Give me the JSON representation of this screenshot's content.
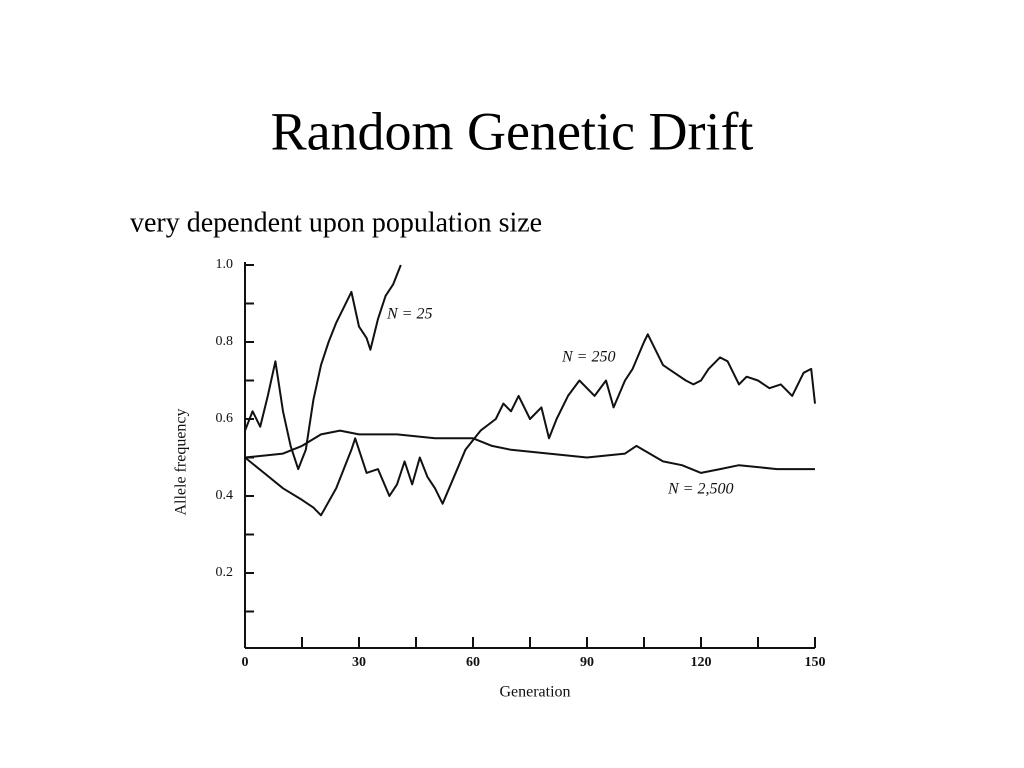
{
  "title": "Random Genetic Drift",
  "subtitle": "very dependent upon population size",
  "chart_data": {
    "type": "line",
    "xlabel": "Generation",
    "ylabel": "Allele frequency",
    "xlim": [
      0,
      150
    ],
    "ylim": [
      0,
      1
    ],
    "xticks": [
      0,
      30,
      60,
      90,
      120,
      150
    ],
    "yticks": [
      0.2,
      0.4,
      0.6,
      0.8,
      {
        "value": 1,
        "label": "1.0"
      }
    ],
    "xminorticks": [
      15,
      45,
      75,
      105,
      135
    ],
    "yminorticks": [
      0.1,
      0.3,
      0.5,
      0.7,
      0.9
    ],
    "series": [
      {
        "name": "N = 25",
        "color": "#111111",
        "x": [
          0,
          2,
          4,
          6,
          8,
          10,
          12,
          14,
          16,
          18,
          20,
          22,
          24,
          26,
          28,
          30,
          32,
          33,
          35,
          37,
          39,
          41
        ],
        "values": [
          0.57,
          0.62,
          0.58,
          0.66,
          0.75,
          0.62,
          0.53,
          0.47,
          0.52,
          0.65,
          0.74,
          0.8,
          0.85,
          0.89,
          0.93,
          0.84,
          0.81,
          0.78,
          0.86,
          0.92,
          0.95,
          1.0
        ]
      },
      {
        "name": "N = 250",
        "color": "#111111",
        "x": [
          0,
          5,
          10,
          15,
          18,
          20,
          24,
          28,
          29,
          32,
          35,
          38,
          40,
          42,
          44,
          46,
          48,
          50,
          52,
          55,
          58,
          62,
          66,
          68,
          70,
          72,
          75,
          78,
          80,
          82,
          85,
          88,
          90,
          92,
          95,
          97,
          100,
          102,
          105,
          106,
          110,
          113,
          116,
          118,
          120,
          122,
          125,
          127,
          130,
          132,
          135,
          138,
          141,
          144,
          147,
          149,
          150
        ],
        "values": [
          0.5,
          0.46,
          0.42,
          0.39,
          0.37,
          0.35,
          0.42,
          0.52,
          0.55,
          0.46,
          0.47,
          0.4,
          0.43,
          0.49,
          0.43,
          0.5,
          0.45,
          0.42,
          0.38,
          0.45,
          0.52,
          0.57,
          0.6,
          0.64,
          0.62,
          0.66,
          0.6,
          0.63,
          0.55,
          0.6,
          0.66,
          0.7,
          0.68,
          0.66,
          0.7,
          0.63,
          0.7,
          0.73,
          0.8,
          0.82,
          0.74,
          0.72,
          0.7,
          0.69,
          0.7,
          0.73,
          0.76,
          0.75,
          0.69,
          0.71,
          0.7,
          0.68,
          0.69,
          0.66,
          0.72,
          0.73,
          0.64
        ]
      },
      {
        "name": "N = 2,500",
        "color": "#111111",
        "x": [
          0,
          10,
          15,
          20,
          25,
          30,
          40,
          50,
          60,
          65,
          70,
          80,
          90,
          100,
          103,
          110,
          115,
          120,
          125,
          130,
          140,
          150
        ],
        "values": [
          0.5,
          0.51,
          0.53,
          0.56,
          0.57,
          0.56,
          0.56,
          0.55,
          0.55,
          0.53,
          0.52,
          0.51,
          0.5,
          0.51,
          0.53,
          0.49,
          0.48,
          0.46,
          0.47,
          0.48,
          0.47,
          0.47
        ]
      }
    ]
  }
}
